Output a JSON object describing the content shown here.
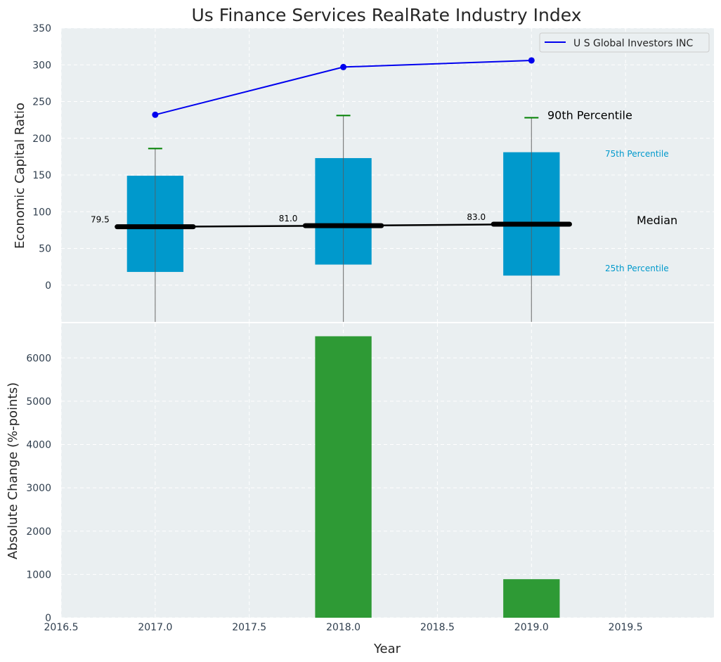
{
  "chart_data": {
    "type": "box",
    "title": "Us Finance Services RealRate Industry Index",
    "top_panel": {
      "ylabel": "Economic Capital Ratio",
      "ylim": [
        -50,
        350
      ],
      "yticks": [
        0,
        50,
        100,
        150,
        200,
        250,
        300,
        350
      ],
      "grid": true,
      "boxes": [
        {
          "x": 2017,
          "p25": 18,
          "median": 79.5,
          "p75": 149,
          "p90": 186,
          "median_label": "79.5"
        },
        {
          "x": 2018,
          "p25": 28,
          "median": 81.0,
          "p75": 173,
          "p90": 231,
          "median_label": "81.0"
        },
        {
          "x": 2019,
          "p25": 13,
          "median": 83.0,
          "p75": 181,
          "p90": 228,
          "median_label": "83.0"
        }
      ],
      "median_line": {
        "x": [
          2017,
          2018,
          2019
        ],
        "y": [
          79.5,
          81.0,
          83.0
        ]
      },
      "series": [
        {
          "name": "U S Global Investors INC",
          "x": [
            2017,
            2018,
            2019
          ],
          "y": [
            232,
            297,
            306
          ],
          "color": "#0000ee"
        }
      ],
      "annotations": {
        "p90": "90th Percentile",
        "p75": "75th Percentile",
        "median": "Median",
        "p25": "25th Percentile"
      },
      "legend": "upper-right"
    },
    "bottom_panel": {
      "type": "bar",
      "ylabel": "Absolute Change (%-points)",
      "xlabel": "Year",
      "ylim": [
        0,
        6800
      ],
      "yticks": [
        0,
        1000,
        2000,
        3000,
        4000,
        5000,
        6000
      ],
      "x": [
        2017,
        2018,
        2019
      ],
      "values": [
        0,
        6500,
        890
      ],
      "color": "#2e9a35",
      "grid": true
    },
    "xlim": [
      2016.5,
      2019.97
    ],
    "xticks": [
      "2016.5",
      "2017.0",
      "2017.5",
      "2018.0",
      "2018.5",
      "2019.0",
      "2019.5"
    ],
    "colors": {
      "panel_bg": "#eaeff1",
      "box_fill": "#0099cc",
      "whisker_cap": "#008000",
      "median": "#000000"
    }
  }
}
